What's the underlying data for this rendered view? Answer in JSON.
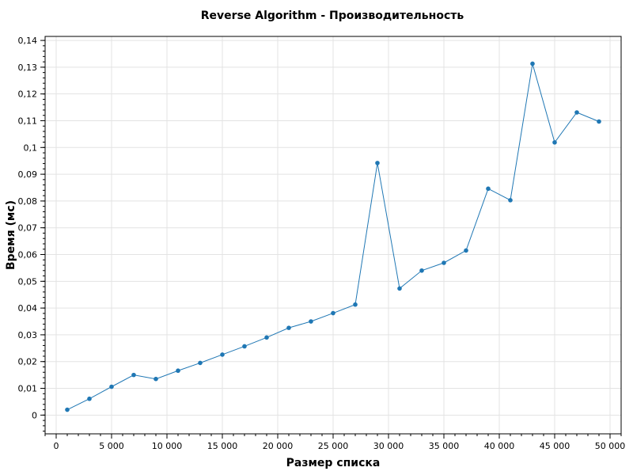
{
  "chart_data": {
    "type": "line",
    "title": "Reverse Algorithm - Производительность",
    "xlabel": "Размер списка",
    "ylabel": "Время (мс)",
    "xlim": [
      -1000,
      51000
    ],
    "ylim": [
      -0.007,
      0.1415
    ],
    "x_ticks": [
      0,
      5000,
      10000,
      15000,
      20000,
      25000,
      30000,
      35000,
      40000,
      45000,
      50000
    ],
    "x_tick_labels": [
      "0",
      "5 000",
      "10 000",
      "15 000",
      "20 000",
      "25 000",
      "30 000",
      "35 000",
      "40 000",
      "45 000",
      "50 000"
    ],
    "y_ticks": [
      0,
      0.01,
      0.02,
      0.03,
      0.04,
      0.05,
      0.06,
      0.07,
      0.08,
      0.09,
      0.1,
      0.11,
      0.12,
      0.13,
      0.14
    ],
    "y_tick_labels": [
      "0",
      "0,01",
      "0,02",
      "0,03",
      "0,04",
      "0,05",
      "0,06",
      "0,07",
      "0,08",
      "0,09",
      "0,1",
      "0,11",
      "0,12",
      "0,13",
      "0,14"
    ],
    "grid": true,
    "color": "#1f77b4",
    "series": [
      {
        "x": [
          1000,
          3000,
          5000,
          7000,
          9000,
          11000,
          13000,
          15000,
          17000,
          19000,
          21000,
          23000,
          25000,
          27000,
          29000,
          31000,
          33000,
          35000,
          37000,
          39000,
          41000,
          43000,
          45000,
          47000,
          49000
        ],
        "values": [
          0.002,
          0.0061,
          0.0106,
          0.015,
          0.0135,
          0.0166,
          0.0195,
          0.0226,
          0.0257,
          0.029,
          0.0326,
          0.035,
          0.0381,
          0.0413,
          0.0942,
          0.0473,
          0.054,
          0.0569,
          0.0615,
          0.0846,
          0.0803,
          0.1313,
          0.1019,
          0.1131,
          0.1097
        ]
      }
    ]
  }
}
